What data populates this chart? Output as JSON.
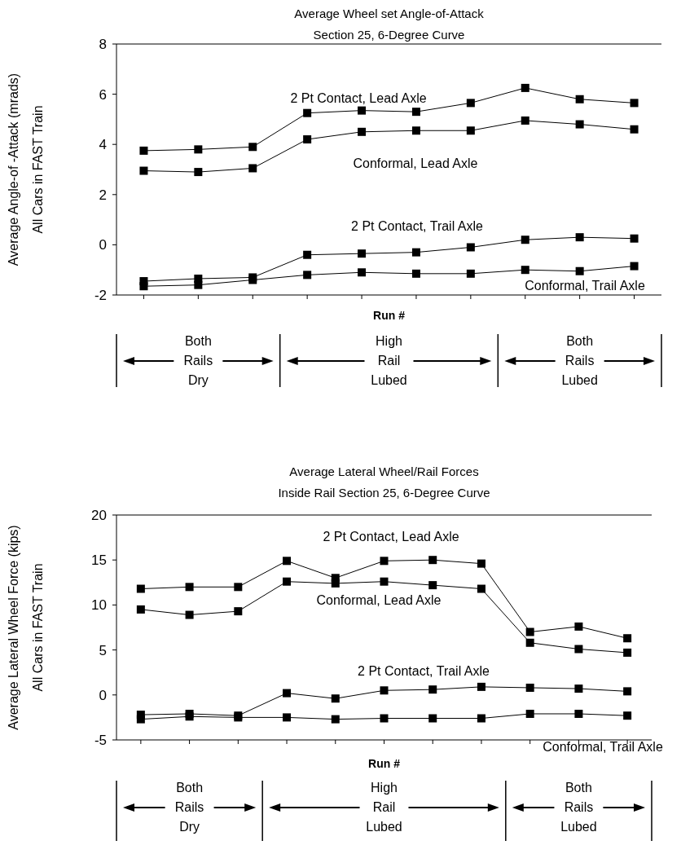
{
  "chart_data": [
    {
      "type": "line",
      "title": "Average Wheel set Angle-of-Attack",
      "subtitle": "Section 25, 6-Degree Curve",
      "xlabel": "Run #",
      "ylabel": "Average Angle-of -Attack (mrads)\nAll Cars in FAST Train",
      "categories": [
        null,
        null,
        null,
        null,
        null,
        null,
        null,
        null,
        null,
        null
      ],
      "series": [
        {
          "name": "2 Pt Contact, Lead Axle",
          "color": "#000000",
          "values": [
            3.75,
            3.8,
            3.9,
            5.25,
            5.35,
            5.3,
            5.65,
            6.25,
            5.8,
            5.65
          ]
        },
        {
          "name": "Conformal, Lead Axle",
          "color": "#000000",
          "values": [
            2.95,
            2.9,
            3.05,
            4.2,
            4.5,
            4.55,
            4.55,
            4.95,
            4.8,
            4.6
          ]
        },
        {
          "name": "2 Pt Contact, Trail Axle",
          "color": "#000000",
          "values": [
            -1.45,
            -1.35,
            -1.3,
            -0.4,
            -0.35,
            -0.3,
            -0.1,
            0.2,
            0.3,
            0.25
          ]
        },
        {
          "name": "Conformal, Trail Axle",
          "color": "#000000",
          "values": [
            -1.65,
            -1.6,
            -1.4,
            -1.2,
            -1.1,
            -1.15,
            -1.15,
            -1.0,
            -1.05,
            -0.85
          ]
        }
      ],
      "ylim": [
        -2,
        8
      ],
      "yticks": [
        -2,
        0,
        2,
        4,
        6,
        8
      ],
      "grid": false,
      "marker": "square",
      "line_style": "solid",
      "annotations": [
        "Both Rails Dry",
        "High Rail Lubed",
        "Both Rails Lubed"
      ]
    },
    {
      "type": "line",
      "title": "Average Lateral Wheel/Rail Forces",
      "subtitle": "Inside Rail Section 25, 6-Degree Curve",
      "xlabel": "Run #",
      "ylabel": "Average Lateral Wheel Force (kips)\nAll Cars in FAST Train",
      "categories": [
        null,
        null,
        null,
        null,
        null,
        null,
        null,
        null,
        null,
        null,
        null
      ],
      "series": [
        {
          "name": "2 Pt Contact, Lead Axle",
          "color": "#000000",
          "values": [
            11.8,
            12,
            12,
            14.9,
            13,
            14.9,
            15,
            14.6,
            7,
            7.6,
            6.3
          ]
        },
        {
          "name": "Conformal, Lead Axle",
          "color": "#000000",
          "values": [
            9.5,
            8.9,
            9.3,
            12.6,
            12.4,
            12.6,
            12.2,
            11.8,
            5.8,
            5.1,
            4.7
          ]
        },
        {
          "name": "2 Pt Contact, Trail Axle",
          "color": "#000000",
          "values": [
            -2.2,
            -2.1,
            -2.3,
            0.2,
            -0.4,
            0.5,
            0.6,
            0.9,
            0.8,
            0.7,
            0.4
          ]
        },
        {
          "name": "Conformal, Trail Axle",
          "color": "#000000",
          "values": [
            -2.7,
            -2.4,
            -2.5,
            -2.5,
            -2.7,
            -2.6,
            -2.6,
            -2.6,
            -2.1,
            -2.1,
            -2.3
          ]
        }
      ],
      "ylim": [
        -5,
        20
      ],
      "yticks": [
        -5,
        0,
        5,
        10,
        15,
        20
      ],
      "grid": false,
      "marker": "square",
      "line_style": "solid",
      "annotations": [
        "Both Rails Dry",
        "High Rail Lubed",
        "Both Rails Lubed"
      ]
    }
  ]
}
